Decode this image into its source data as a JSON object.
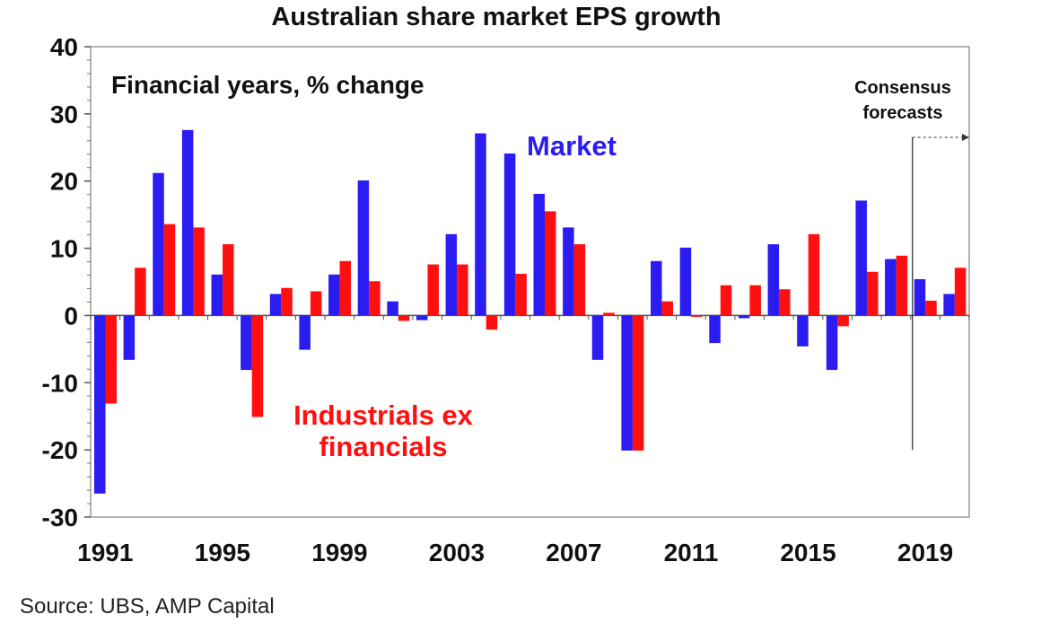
{
  "chart_data": {
    "type": "bar",
    "title": "Australian share market EPS growth",
    "subtitle": "Financial years, % change",
    "xlabel": "",
    "ylabel": "",
    "ylim": [
      -30,
      40
    ],
    "yticks": [
      -30,
      -20,
      -10,
      0,
      10,
      20,
      30,
      40
    ],
    "ytick_labels": [
      "-30",
      "-20",
      "-10",
      "0",
      "10",
      "20",
      "30",
      "40"
    ],
    "categories": [
      1991,
      1992,
      1993,
      1994,
      1995,
      1996,
      1997,
      1998,
      1999,
      2000,
      2001,
      2002,
      2003,
      2004,
      2005,
      2006,
      2007,
      2008,
      2009,
      2010,
      2011,
      2012,
      2013,
      2014,
      2015,
      2016,
      2017,
      2018,
      2019,
      2020
    ],
    "xtick_labels": [
      {
        "year": 1991,
        "label": "1991"
      },
      {
        "year": 1995,
        "label": "1995"
      },
      {
        "year": 1999,
        "label": "1999"
      },
      {
        "year": 2003,
        "label": "2003"
      },
      {
        "year": 2007,
        "label": "2007"
      },
      {
        "year": 2011,
        "label": "2011"
      },
      {
        "year": 2015,
        "label": "2015"
      },
      {
        "year": 2019,
        "label": "2019"
      }
    ],
    "series": [
      {
        "name": "Market",
        "color": "#2b1cf2",
        "values": [
          -26.5,
          -6.6,
          21.2,
          27.6,
          6.1,
          -8.1,
          3.2,
          -5.1,
          6.1,
          20.1,
          2.1,
          -0.7,
          12.1,
          27.1,
          24.1,
          18.1,
          13.1,
          -6.6,
          -20.1,
          8.1,
          10.1,
          -4.1,
          -0.4,
          10.6,
          -4.6,
          -8.1,
          17.1,
          8.4,
          5.4,
          3.2
        ]
      },
      {
        "name": "Industrials ex financials",
        "color": "#ff0f0f",
        "values": [
          -13.1,
          7.1,
          13.6,
          13.1,
          10.6,
          -15.1,
          4.1,
          3.6,
          8.1,
          5.1,
          -0.8,
          7.6,
          7.6,
          -2.1,
          6.2,
          15.5,
          10.6,
          0.4,
          -20.1,
          2.1,
          -0.2,
          4.5,
          4.5,
          3.9,
          12.1,
          -1.6,
          6.5,
          8.9,
          2.2,
          7.1
        ]
      }
    ],
    "annotations": {
      "market_label": "Market",
      "industrials_label_line1": "Industrials ex",
      "industrials_label_line2": "financials",
      "consensus_line1": "Consensus",
      "consensus_line2": "forecasts",
      "forecast_start_year": 2019
    },
    "grid": false,
    "legend": "none"
  },
  "source": "Source: UBS, AMP Capital"
}
